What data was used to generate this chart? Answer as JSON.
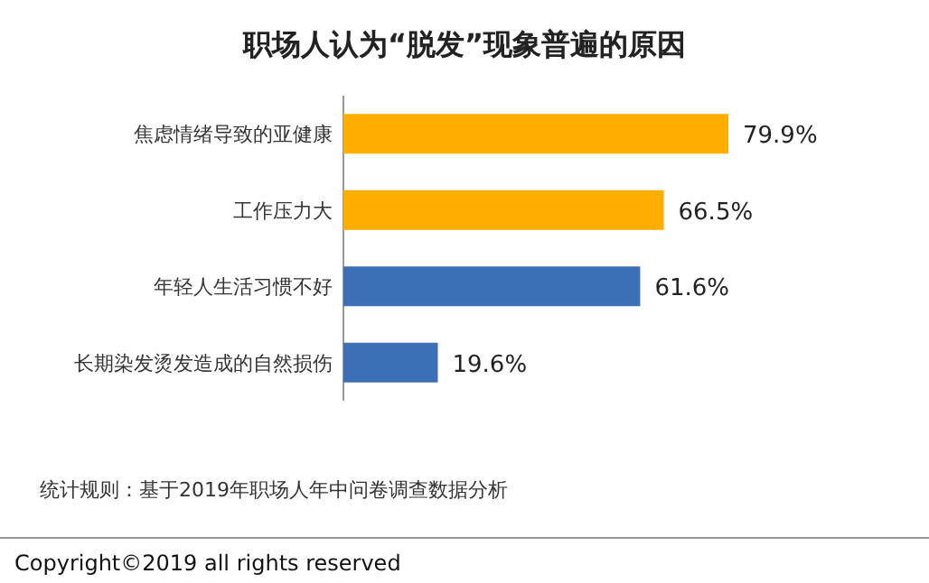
{
  "chart_data": {
    "type": "bar",
    "orientation": "horizontal",
    "title": "职场人认为“脱发”现象普遍的原因",
    "categories": [
      "焦虑情绪导致的亚健康",
      "工作压力大",
      "年轻人生活习惯不好",
      "长期染发烫发造成的自然损伤"
    ],
    "values": [
      79.9,
      66.5,
      61.6,
      19.6
    ],
    "colors": [
      "#ffad00",
      "#ffad00",
      "#3d6fb6",
      "#3d6fb6"
    ],
    "value_labels": [
      "79.9%",
      "66.5%",
      "61.6%",
      "19.6%"
    ],
    "annotations": [
      "统计规则：基于2019年职场人年中问卷调查数据分析",
      "Copyright©2019 all rights reserved"
    ]
  }
}
